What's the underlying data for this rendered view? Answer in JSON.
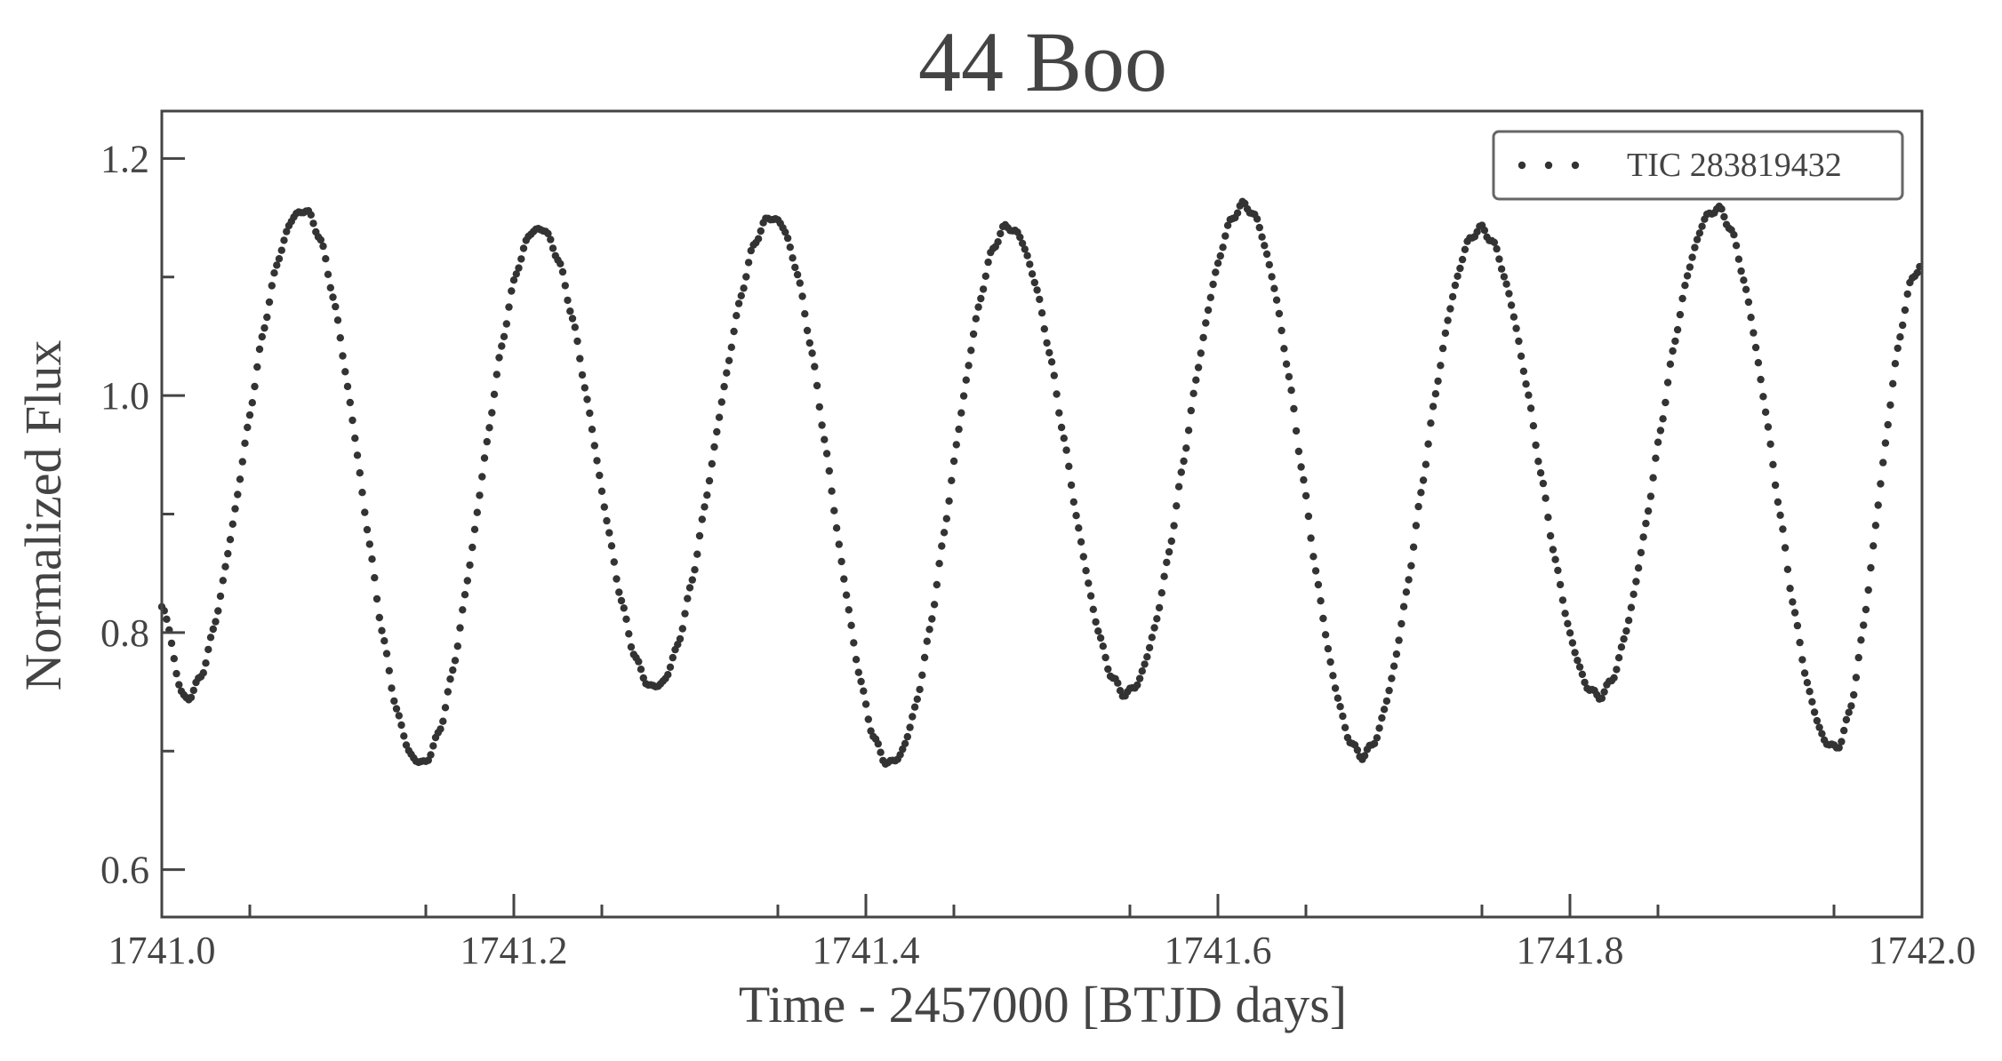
{
  "chart_data": {
    "type": "scatter",
    "title": "44 Boo",
    "xlabel": "Time - 2457000 [BTJD days]",
    "ylabel": "Normalized Flux",
    "xlim": [
      1741.0,
      1742.0
    ],
    "ylim": [
      0.56,
      1.24
    ],
    "x_ticks": [
      "1741.0",
      "1741.2",
      "1741.4",
      "1741.6",
      "1741.8",
      "1742.0"
    ],
    "y_ticks": [
      "0.6",
      "0.8",
      "1.0",
      "1.2"
    ],
    "legend_position": "top-right",
    "grid": false,
    "marker_color": "#333333",
    "series": [
      {
        "name": "TIC 283819432",
        "minima": [
          {
            "t": 1741.013,
            "flux": 0.745
          },
          {
            "t": 1741.147,
            "flux": 0.69
          },
          {
            "t": 1741.28,
            "flux": 0.754
          },
          {
            "t": 1741.414,
            "flux": 0.69
          },
          {
            "t": 1741.548,
            "flux": 0.749
          },
          {
            "t": 1741.682,
            "flux": 0.697
          },
          {
            "t": 1741.816,
            "flux": 0.747
          },
          {
            "t": 1741.95,
            "flux": 0.703
          }
        ],
        "maxima": [
          {
            "t": 1741.08,
            "flux": 1.156
          },
          {
            "t": 1741.214,
            "flux": 1.141
          },
          {
            "t": 1741.347,
            "flux": 1.15
          },
          {
            "t": 1741.481,
            "flux": 1.142
          },
          {
            "t": 1741.615,
            "flux": 1.16
          },
          {
            "t": 1741.749,
            "flux": 1.14
          },
          {
            "t": 1741.883,
            "flux": 1.157
          }
        ],
        "first_point": {
          "t": 1741.0,
          "flux": 0.82
        },
        "last_point": {
          "t": 1742.0,
          "flux": 1.11
        },
        "cadence_days": 0.001389
      }
    ]
  }
}
